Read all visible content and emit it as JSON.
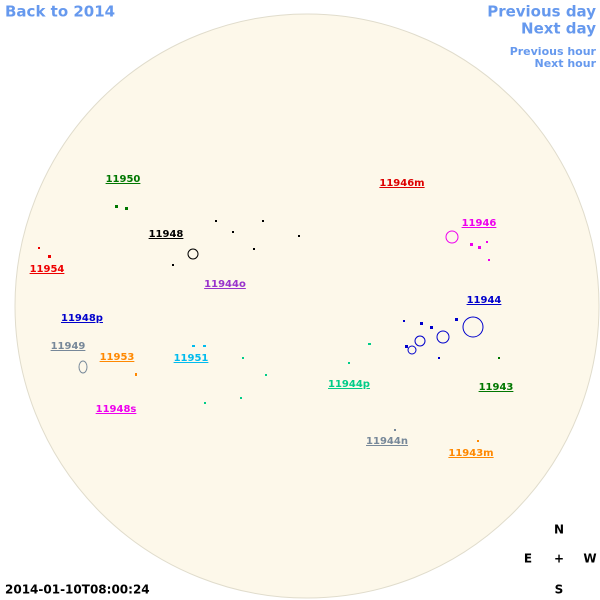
{
  "nav": {
    "back": "Back to 2014",
    "previous_day": "Previous day",
    "next_day": "Next day",
    "previous_hour": "Previous hour",
    "next_hour": "Next hour"
  },
  "timestamp": "2014-01-10T08:00:24",
  "compass": {
    "north": "N",
    "east": "E",
    "center": "+",
    "west": "W",
    "south": "S"
  },
  "regions": [
    {
      "label": "11950",
      "color": "#007700"
    },
    {
      "label": "11946m",
      "color": "#dd0000"
    },
    {
      "label": "11946",
      "color": "#ee00ee"
    },
    {
      "label": "11948",
      "color": "#000000"
    },
    {
      "label": "11954",
      "color": "#ee0000"
    },
    {
      "label": "11944o",
      "color": "#9933cc"
    },
    {
      "label": "11944",
      "color": "#0000cc"
    },
    {
      "label": "11948p",
      "color": "#0000cc"
    },
    {
      "label": "11949",
      "color": "#778899"
    },
    {
      "label": "11953",
      "color": "#ff8800"
    },
    {
      "label": "11951",
      "color": "#00bbee"
    },
    {
      "label": "11944p",
      "color": "#00cc88"
    },
    {
      "label": "11943",
      "color": "#007700"
    },
    {
      "label": "11948s",
      "color": "#ee00ee"
    },
    {
      "label": "11944n",
      "color": "#778899"
    },
    {
      "label": "11943m",
      "color": "#ff8800"
    }
  ]
}
